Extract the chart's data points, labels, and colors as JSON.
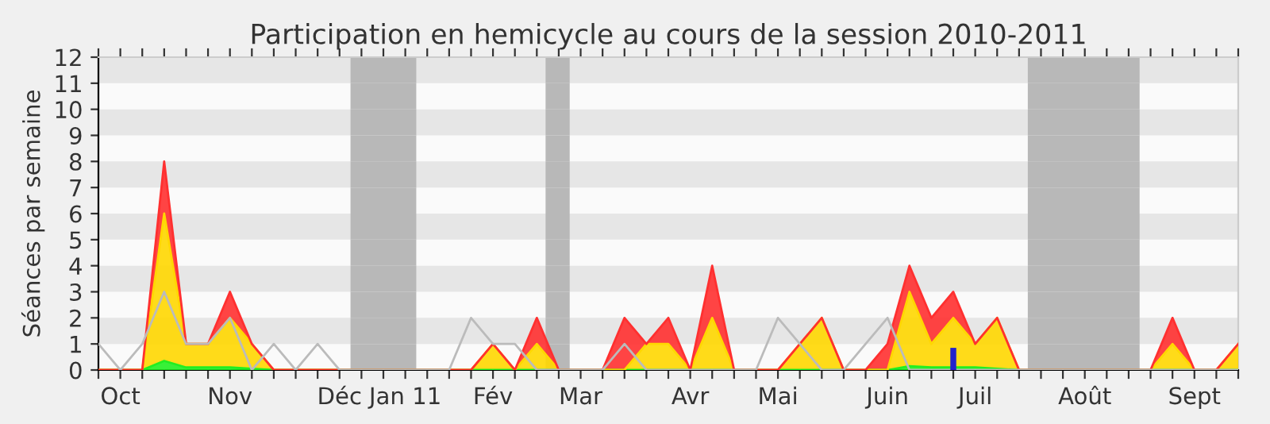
{
  "chart_data": {
    "type": "area",
    "stacked": true,
    "title": "Participation en hemicycle au cours de la session 2010-2011",
    "ylabel": "Séances par semaine",
    "categories": [
      null,
      "Oct",
      null,
      null,
      null,
      null,
      "Nov",
      null,
      null,
      null,
      null,
      "Déc",
      null,
      null,
      "Jan 11",
      null,
      null,
      null,
      "Fév",
      null,
      null,
      null,
      "Mar",
      null,
      null,
      null,
      null,
      "Avr",
      null,
      null,
      null,
      "Mai",
      null,
      null,
      null,
      null,
      "Juin",
      null,
      null,
      null,
      "Juil",
      null,
      null,
      null,
      null,
      "Août",
      null,
      null,
      null,
      null,
      "Sept",
      null,
      null
    ],
    "series": [
      {
        "type": "line",
        "color": "#bbbbbb",
        "values": [
          1,
          0,
          1,
          3,
          1,
          1,
          2,
          0,
          1,
          0,
          1,
          0,
          0,
          0,
          0,
          0,
          0,
          2,
          1,
          1,
          0,
          0,
          0,
          0,
          1,
          0,
          0,
          0,
          0,
          0,
          0,
          2,
          1,
          0,
          0,
          1,
          2,
          0,
          0,
          0,
          0,
          0,
          0,
          0,
          0,
          0,
          0,
          0,
          0,
          0,
          0,
          0,
          0
        ]
      },
      {
        "color": "#22ee22",
        "values": [
          0,
          0,
          0,
          0.35,
          0.1,
          0.1,
          0.1,
          0.05,
          0,
          0,
          0,
          0,
          0,
          0,
          0,
          0,
          0,
          0,
          0,
          0,
          0,
          0,
          0,
          0,
          0,
          0,
          0,
          0,
          0,
          0,
          0,
          0,
          0,
          0,
          0,
          0,
          0,
          0.15,
          0.1,
          0.1,
          0.1,
          0.05,
          0,
          0,
          0,
          0,
          0,
          0,
          0,
          0,
          0,
          0,
          0
        ]
      },
      {
        "color": "#ffd700",
        "values": [
          0,
          0,
          0,
          5.65,
          0.9,
          0.9,
          1.9,
          0.95,
          0,
          0,
          0,
          0,
          0,
          0,
          0,
          0,
          0,
          0,
          1,
          0,
          1,
          0,
          0,
          0,
          0,
          1,
          1,
          0,
          2,
          0,
          0,
          0,
          1,
          2,
          0,
          0,
          0,
          2.85,
          0.9,
          1.9,
          0.9,
          1.95,
          0,
          0,
          0,
          0,
          0,
          0,
          0,
          1,
          0,
          0,
          1
        ]
      },
      {
        "color": "#ff3030",
        "values": [
          0,
          0,
          0,
          2,
          0,
          0,
          1,
          0,
          0,
          0,
          0,
          0,
          0,
          0,
          0,
          0,
          0,
          0,
          0,
          0,
          1,
          0,
          0,
          0,
          2,
          0,
          1,
          0,
          2,
          0,
          0,
          0,
          0,
          0,
          0,
          0,
          1,
          1,
          1,
          1,
          0,
          0,
          0,
          0,
          0,
          0,
          0,
          0,
          0,
          1,
          0,
          0,
          0
        ]
      },
      {
        "type": "bar",
        "color": "#2222cc",
        "values": [
          null,
          null,
          null,
          null,
          null,
          null,
          null,
          null,
          null,
          null,
          null,
          null,
          null,
          null,
          null,
          null,
          null,
          null,
          null,
          null,
          null,
          null,
          null,
          null,
          null,
          null,
          null,
          null,
          null,
          null,
          null,
          null,
          null,
          null,
          null,
          null,
          null,
          null,
          null,
          0.85,
          null,
          null,
          null,
          null,
          null,
          null,
          null,
          null,
          null,
          null,
          null,
          null,
          null
        ]
      }
    ],
    "ylim": [
      0,
      12
    ],
    "yticks": [
      0,
      1,
      2,
      3,
      4,
      5,
      6,
      7,
      8,
      9,
      10,
      11,
      12
    ]
  }
}
